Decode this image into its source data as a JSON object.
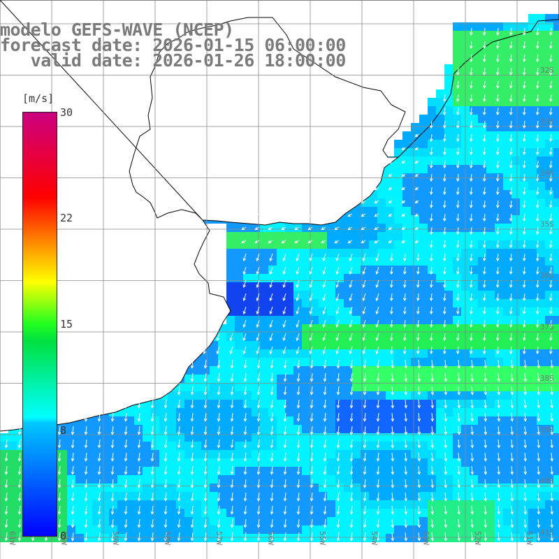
{
  "title": {
    "line1": "modelo GEFS-WAVE (NCEP)",
    "line2": "forecast date: 2026-01-15 06:00:00",
    "line3": "   valid date: 2026-01-26 18:00:00"
  },
  "legend": {
    "unit": "[m/s]",
    "ticks": [
      "30",
      "22",
      "15",
      "8",
      "0"
    ],
    "colors": [
      "#0000ff",
      "#00c8ff",
      "#00ffff",
      "#20ff20",
      "#ffff00",
      "#ff8000",
      "#ff0000",
      "#cc0080"
    ]
  },
  "lat_labels": [
    "32S",
    "33S",
    "34S",
    "35S",
    "36S",
    "37S",
    "38S",
    "39S",
    "40S",
    "41S"
  ],
  "lon_labels": [
    "61W",
    "60W",
    "59W",
    "58W",
    "57W",
    "56W",
    "55W",
    "54W",
    "53W",
    "52W",
    "51W"
  ],
  "map_colors": {
    "land": "#ffffff",
    "coast": "#000000",
    "grid": "#888888",
    "arrow": "#ffffff"
  }
}
